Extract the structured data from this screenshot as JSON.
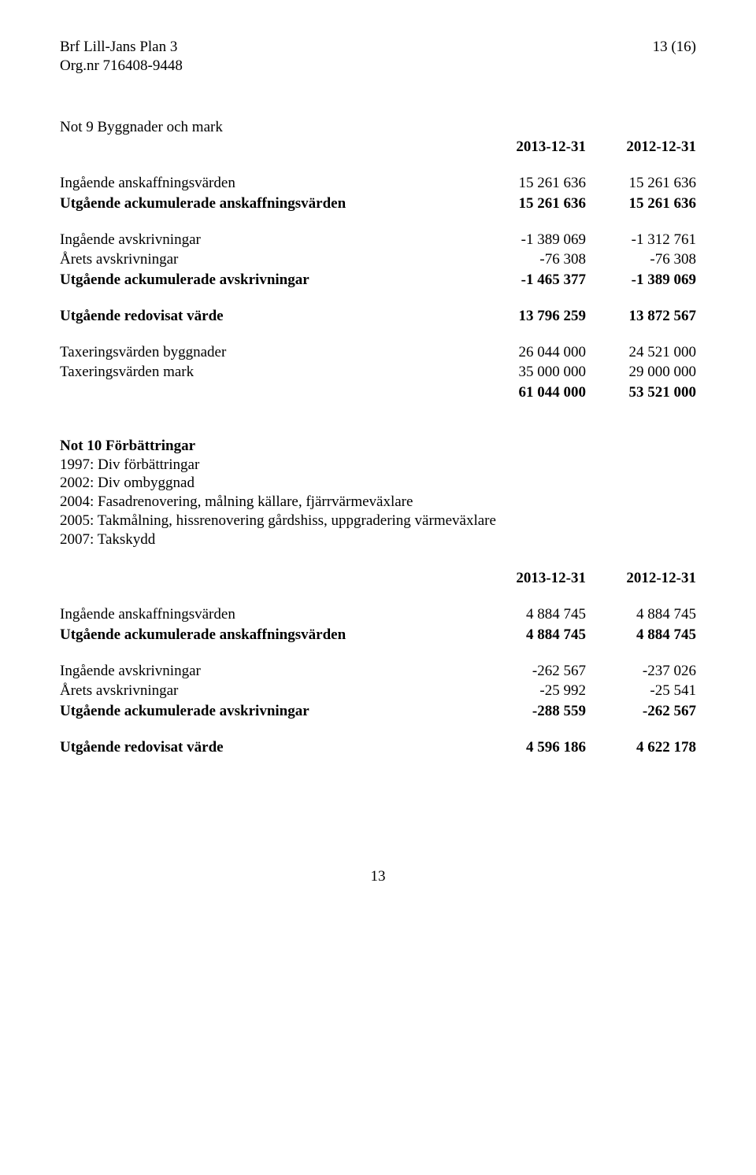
{
  "header": {
    "line1": "Brf Lill-Jans Plan 3",
    "line2": "Org.nr 716408-9448",
    "pageIndicator": "13 (16)"
  },
  "note9": {
    "title": "Not 9 Byggnader och mark",
    "colHeaders": {
      "c1": "2013-12-31",
      "c2": "2012-12-31"
    },
    "rows": {
      "r1": {
        "label": "Ingående anskaffningsvärden",
        "c1": "15 261 636",
        "c2": "15 261 636"
      },
      "r2": {
        "label": "Utgående ackumulerade anskaffningsvärden",
        "c1": "15 261 636",
        "c2": "15 261 636"
      },
      "r3": {
        "label": "Ingående avskrivningar",
        "c1": "-1 389 069",
        "c2": "-1 312 761"
      },
      "r4": {
        "label": "Årets avskrivningar",
        "c1": "-76 308",
        "c2": "-76 308"
      },
      "r5": {
        "label": "Utgående ackumulerade avskrivningar",
        "c1": "-1 465 377",
        "c2": "-1 389 069"
      },
      "r6": {
        "label": "Utgående redovisat värde",
        "c1": "13 796 259",
        "c2": "13 872 567"
      },
      "r7": {
        "label": "Taxeringsvärden byggnader",
        "c1": "26 044 000",
        "c2": "24 521 000"
      },
      "r8": {
        "label": "Taxeringsvärden mark",
        "c1": "35 000 000",
        "c2": "29 000 000"
      },
      "r9": {
        "label": "",
        "c1": "61 044 000",
        "c2": "53 521 000"
      }
    }
  },
  "note10": {
    "title": "Not 10 Förbättringar",
    "lines": {
      "l1": "1997: Div förbättringar",
      "l2": "2002: Div ombyggnad",
      "l3": "2004: Fasadrenovering, målning källare, fjärrvärmeväxlare",
      "l4": "2005: Takmålning, hissrenovering gårdshiss, uppgradering värmeväxlare",
      "l5": "2007: Takskydd"
    },
    "colHeaders": {
      "c1": "2013-12-31",
      "c2": "2012-12-31"
    },
    "rows": {
      "r1": {
        "label": "Ingående anskaffningsvärden",
        "c1": "4 884 745",
        "c2": "4 884 745"
      },
      "r2": {
        "label": "Utgående ackumulerade anskaffningsvärden",
        "c1": "4 884 745",
        "c2": "4 884 745"
      },
      "r3": {
        "label": "Ingående avskrivningar",
        "c1": "-262 567",
        "c2": "-237 026"
      },
      "r4": {
        "label": "Årets avskrivningar",
        "c1": "-25 992",
        "c2": "-25 541"
      },
      "r5": {
        "label": "Utgående ackumulerade avskrivningar",
        "c1": "-288 559",
        "c2": "-262 567"
      },
      "r6": {
        "label": "Utgående redovisat värde",
        "c1": "4 596 186",
        "c2": "4 622 178"
      }
    }
  },
  "pageNumber": "13"
}
